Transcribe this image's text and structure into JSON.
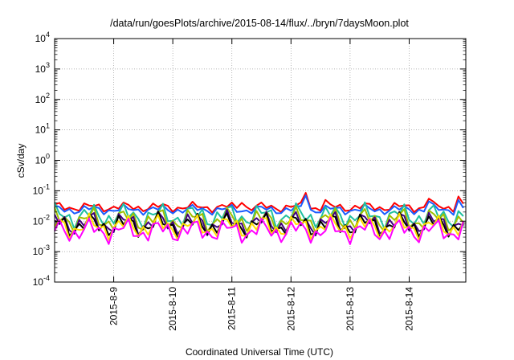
{
  "chart_data": {
    "type": "line",
    "title": "/data/run/goesPlots/archive/2015-08-14/flux/../bryn/7daysMoon.plot",
    "xlabel": "Coordinated Universal Time (UTC)",
    "ylabel": "cSv/day",
    "xlim": [
      "2015-08-08 00:00",
      "2015-08-14 23:00"
    ],
    "ylim": [
      0.0001,
      10000
    ],
    "yscale": "log",
    "grid": true,
    "x_ticks": [
      "2015-8-9",
      "2015-8-10",
      "2015-8-11",
      "2015-8-12",
      "2015-8-13",
      "2015-8-14"
    ],
    "y_ticks": [
      {
        "value": 0.0001,
        "base": "10",
        "exp": "-4"
      },
      {
        "value": 0.001,
        "base": "10",
        "exp": "-3"
      },
      {
        "value": 0.01,
        "base": "10",
        "exp": "-2"
      },
      {
        "value": 0.1,
        "base": "10",
        "exp": "-1"
      },
      {
        "value": 1,
        "base": "10",
        "exp": "0"
      },
      {
        "value": 10,
        "base": "10",
        "exp": "1"
      },
      {
        "value": 100,
        "base": "10",
        "exp": "2"
      },
      {
        "value": 1000,
        "base": "10",
        "exp": "3"
      },
      {
        "value": 10000,
        "base": "10",
        "exp": "4"
      }
    ],
    "time_step_hours": 2,
    "series": [
      {
        "color": "#ff0000",
        "base": 0.029,
        "spike": {
          "2015-08-11 04:00": 0.04,
          "2015-08-12 06:00": 0.085,
          "2015-08-12 14:00": 0.05,
          "2015-08-14 08:00": 0.055,
          "2015-08-14 20:00": 0.065
        }
      },
      {
        "color": "#1a5cff",
        "base": 0.024,
        "spike": {
          "2015-08-12 06:00": 0.07,
          "2015-08-14 08:00": 0.045,
          "2015-08-14 20:00": 0.05
        }
      },
      {
        "color": "#20c0a0",
        "base": 0.015,
        "spike": {}
      },
      {
        "color": "#a0c000",
        "base": 0.011,
        "spike": {}
      },
      {
        "color": "#400080",
        "base": 0.0085,
        "spike": {}
      },
      {
        "color": "#000000",
        "base": 0.0075,
        "spike": {}
      },
      {
        "color": "#ffe000",
        "base": 0.0065,
        "spike": {}
      },
      {
        "color": "#ff00ff",
        "base": 0.0048,
        "spike": {}
      }
    ]
  }
}
